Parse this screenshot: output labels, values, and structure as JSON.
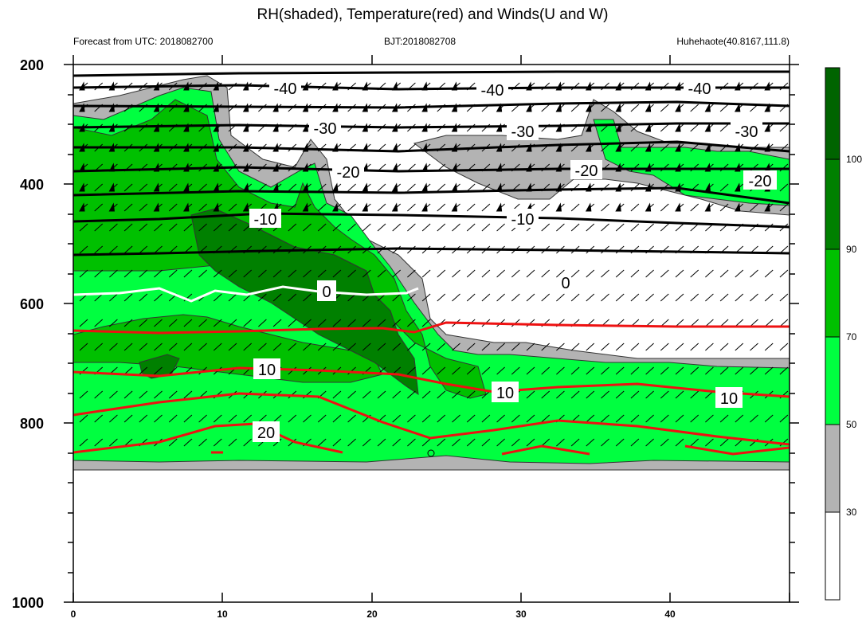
{
  "chart_data": {
    "type": "heatmap",
    "title": "RH(shaded), Temperature(red) and Winds(U and W)",
    "info_left": "Forecast from UTC: 2018082700",
    "info_center": "BJT:2018082708",
    "info_right": "Huhehaote(40.8167,111.8)",
    "x_range": [
      0,
      48
    ],
    "x_ticks": [
      "0",
      "10",
      "20",
      "30",
      "40"
    ],
    "y_range": [
      200,
      1000
    ],
    "y_ticks": [
      "200",
      "400",
      "600",
      "800",
      "1000"
    ],
    "colorbar": {
      "levels": [
        "30",
        "50",
        "70",
        "90",
        "100"
      ],
      "colors": [
        "#ffffff",
        "#b3b3b3",
        "#00ff40",
        "#00c000",
        "#008000",
        "#006400"
      ]
    },
    "temperature_black_labels": [
      "-40",
      "-40",
      "-40",
      "-30",
      "-30",
      "-30",
      "-20",
      "-20",
      "-20",
      "-10",
      "-10"
    ],
    "temperature_white_label": "0",
    "temperature_zero_label": "0",
    "temperature_red_labels": [
      "10",
      "10",
      "10",
      "20"
    ],
    "colors": {
      "black_contour": "#000000",
      "red_contour": "#ee1111",
      "white_contour": "#ffffff"
    }
  }
}
